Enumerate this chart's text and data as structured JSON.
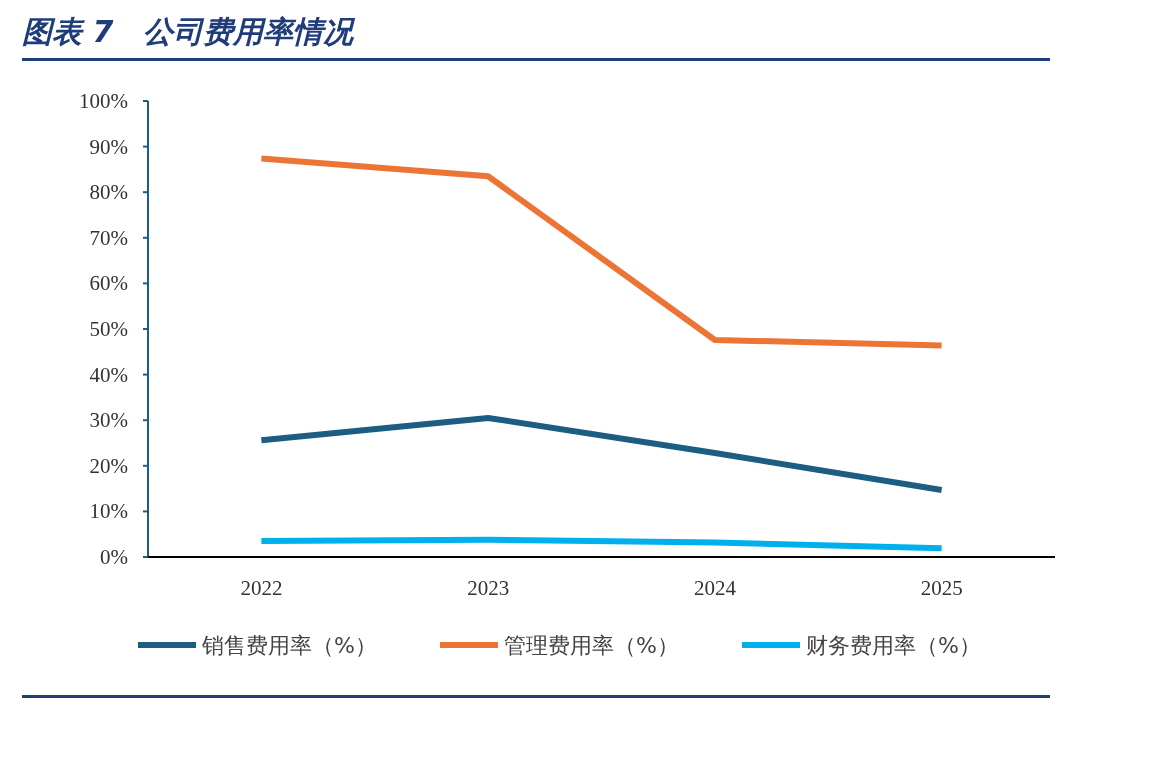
{
  "chart_data": {
    "type": "line",
    "title": "图表 7　公司费用率情况",
    "categories": [
      "2022",
      "2023",
      "2024",
      "2025"
    ],
    "series": [
      {
        "name": "销售费用率（%）",
        "color": "#1b5e82",
        "values": [
          25.6,
          30.5,
          22.8,
          14.7
        ]
      },
      {
        "name": "管理费用率（%）",
        "color": "#ec7434",
        "values": [
          87.4,
          83.5,
          47.6,
          46.4
        ]
      },
      {
        "name": "财务费用率（%）",
        "color": "#00b0ec",
        "values": [
          3.5,
          3.8,
          3.2,
          1.9
        ]
      }
    ],
    "ylim": [
      0,
      100
    ],
    "yticks": [
      {
        "value": 0,
        "label": "0%"
      },
      {
        "value": 10,
        "label": "10%"
      },
      {
        "value": 20,
        "label": "20%"
      },
      {
        "value": 30,
        "label": "30%"
      },
      {
        "value": 40,
        "label": "40%"
      },
      {
        "value": 50,
        "label": "50%"
      },
      {
        "value": 60,
        "label": "60%"
      },
      {
        "value": 70,
        "label": "70%"
      },
      {
        "value": 80,
        "label": "80%"
      },
      {
        "value": 90,
        "label": "90%"
      },
      {
        "value": 100,
        "label": "100%"
      }
    ],
    "legend": "bottom"
  }
}
